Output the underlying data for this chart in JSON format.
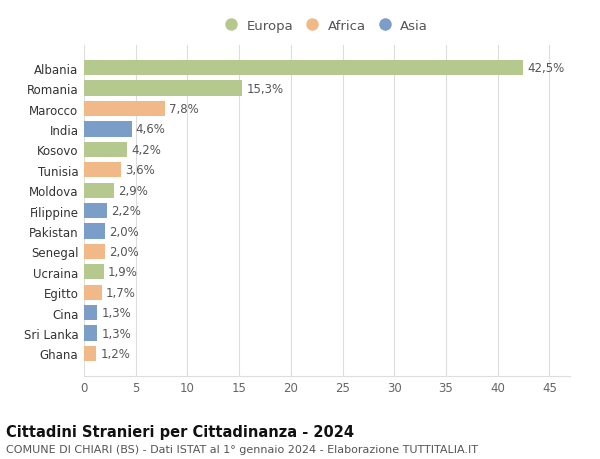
{
  "countries": [
    "Albania",
    "Romania",
    "Marocco",
    "India",
    "Kosovo",
    "Tunisia",
    "Moldova",
    "Filippine",
    "Pakistan",
    "Senegal",
    "Ucraina",
    "Egitto",
    "Cina",
    "Sri Lanka",
    "Ghana"
  ],
  "values": [
    42.5,
    15.3,
    7.8,
    4.6,
    4.2,
    3.6,
    2.9,
    2.2,
    2.0,
    2.0,
    1.9,
    1.7,
    1.3,
    1.3,
    1.2
  ],
  "labels": [
    "42,5%",
    "15,3%",
    "7,8%",
    "4,6%",
    "4,2%",
    "3,6%",
    "2,9%",
    "2,2%",
    "2,0%",
    "2,0%",
    "1,9%",
    "1,7%",
    "1,3%",
    "1,3%",
    "1,2%"
  ],
  "colors": [
    "#b5c98e",
    "#b5c98e",
    "#f0b987",
    "#7a9ec7",
    "#b5c98e",
    "#f0b987",
    "#b5c98e",
    "#7a9ec7",
    "#7a9ec7",
    "#f0b987",
    "#b5c98e",
    "#f0b987",
    "#7a9ec7",
    "#7a9ec7",
    "#f0b987"
  ],
  "legend_colors": {
    "Europa": "#b5c98e",
    "Africa": "#f0b987",
    "Asia": "#7a9ec7"
  },
  "xlim": [
    0,
    47
  ],
  "xticks": [
    0,
    5,
    10,
    15,
    20,
    25,
    30,
    35,
    40,
    45
  ],
  "title_bold": "Cittadini Stranieri per Cittadinanza - 2024",
  "subtitle": "COMUNE DI CHIARI (BS) - Dati ISTAT al 1° gennaio 2024 - Elaborazione TUTTITALIA.IT",
  "background_color": "#ffffff",
  "grid_color": "#dddddd",
  "bar_height": 0.75,
  "label_fontsize": 8.5,
  "tick_fontsize": 8.5,
  "title_fontsize": 10.5,
  "subtitle_fontsize": 8.0,
  "legend_fontsize": 9.5
}
